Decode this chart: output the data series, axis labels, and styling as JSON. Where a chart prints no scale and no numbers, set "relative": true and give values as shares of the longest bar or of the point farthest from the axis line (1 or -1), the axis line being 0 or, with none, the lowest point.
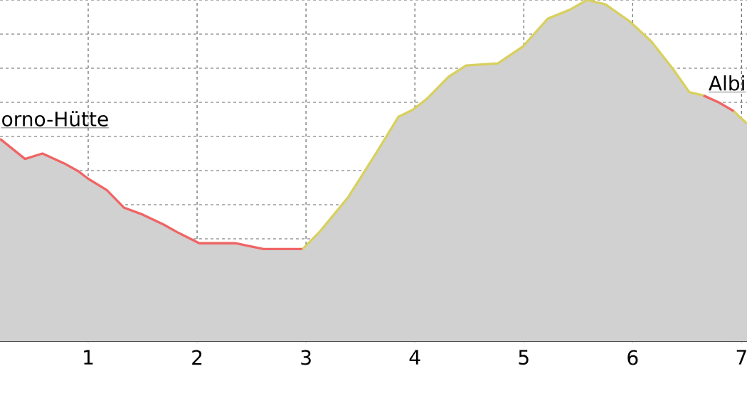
{
  "chart_data": {
    "type": "area",
    "relative": true,
    "xlim": [
      0.19,
      7.05
    ],
    "xticks": [
      1,
      2,
      3,
      4,
      5,
      6,
      7
    ],
    "grid": true,
    "series": [
      {
        "color": "#f06464",
        "x": [
          0.19,
          0.42,
          0.58,
          0.78,
          0.91,
          1.0,
          1.17,
          1.33,
          1.5,
          1.69,
          1.82,
          2.02,
          2.35,
          2.61,
          2.97
        ],
        "values": [
          0.593,
          0.534,
          0.55,
          0.521,
          0.498,
          0.476,
          0.443,
          0.391,
          0.371,
          0.342,
          0.319,
          0.287,
          0.287,
          0.27,
          0.27
        ]
      },
      {
        "color": "#d8d060",
        "x": [
          2.97,
          3.13,
          3.39,
          3.65,
          3.85,
          3.98,
          4.11,
          4.31,
          4.47,
          4.76,
          4.99,
          5.22,
          5.42,
          5.58,
          5.75,
          5.97,
          6.17,
          6.37,
          6.52,
          6.65
        ],
        "values": [
          0.27,
          0.322,
          0.423,
          0.554,
          0.658,
          0.678,
          0.71,
          0.775,
          0.808,
          0.814,
          0.863,
          0.945,
          0.971,
          1.0,
          0.987,
          0.938,
          0.879,
          0.798,
          0.73,
          0.72
        ]
      },
      {
        "color": "#f06464",
        "x": [
          6.65,
          6.79,
          6.93
        ],
        "values": [
          0.72,
          0.7,
          0.674
        ]
      },
      {
        "color": "#d8d060",
        "x": [
          6.93,
          6.99,
          7.05
        ],
        "values": [
          0.674,
          0.655,
          0.638
        ]
      }
    ],
    "annotations": [
      "orno-Hütte",
      "Albi"
    ]
  }
}
